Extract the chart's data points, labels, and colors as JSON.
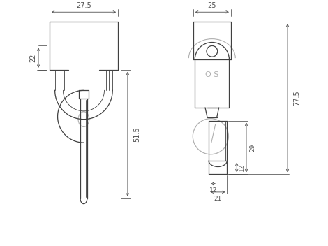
{
  "bg_color": "#ffffff",
  "line_color": "#404040",
  "dim_color": "#505050",
  "light_gray": "#b0b0b0",
  "fig_width": 4.7,
  "fig_height": 3.52,
  "dpi": 100
}
